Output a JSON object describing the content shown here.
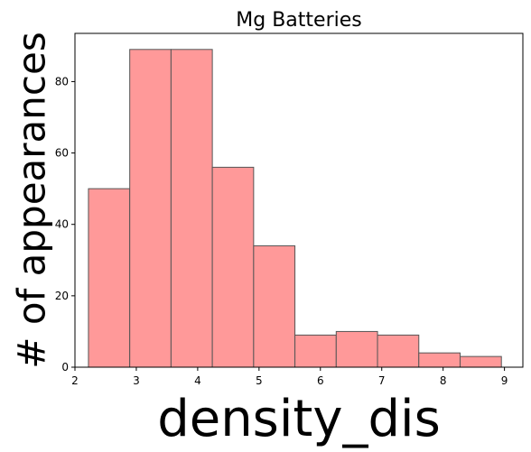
{
  "chart_data": {
    "type": "bar",
    "title": "Mg Batteries",
    "xlabel": "density_dis",
    "ylabel": "# of appearances",
    "bin_edges": [
      2.22,
      2.893,
      3.566,
      4.239,
      4.912,
      5.585,
      6.258,
      6.931,
      7.604,
      8.277,
      8.95
    ],
    "values": [
      50,
      89,
      89,
      56,
      34,
      9,
      10,
      9,
      4,
      3
    ],
    "xlim": [
      2.0,
      9.3
    ],
    "ylim": [
      0,
      93.5
    ],
    "xticks": [
      2,
      3,
      4,
      5,
      6,
      7,
      8,
      9
    ],
    "yticks": [
      0,
      20,
      40,
      60,
      80
    ],
    "bar_color": "#ff9999",
    "edge_color": "#555555",
    "grid": false
  }
}
